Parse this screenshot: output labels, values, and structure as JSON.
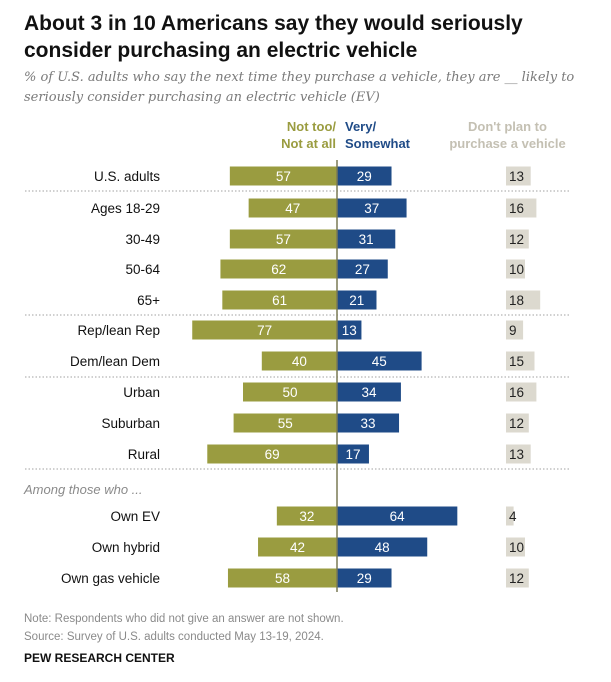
{
  "chart_data": {
    "type": "bar",
    "orientation": "horizontal-diverging",
    "title": "About 3 in 10 Americans say they would seriously consider purchasing an electric vehicle",
    "subtitle": "% of U.S. adults who say the next time they purchase a vehicle, they are __ likely to seriously consider purchasing an electric vehicle (EV)",
    "legend": {
      "not_too": "Not too/ Not at all",
      "not_too_lines": [
        "Not too/",
        "Not at all"
      ],
      "very": "Very/ Somewhat",
      "very_lines": [
        "Very/",
        "Somewhat"
      ],
      "dont_plan": "Don't plan to purchase a vehicle",
      "dont_plan_lines": [
        "Don't plan to",
        "purchase a vehicle"
      ]
    },
    "colors": {
      "not_too": "#9a9c40",
      "very": "#1f4b87",
      "dont_plan": "#dcd9cf"
    },
    "groups": [
      {
        "label": "",
        "rows": [
          0
        ]
      },
      {
        "label": "",
        "rows": [
          1,
          2,
          3,
          4
        ]
      },
      {
        "label": "",
        "rows": [
          5,
          6
        ]
      },
      {
        "label": "",
        "rows": [
          7,
          8,
          9
        ]
      },
      {
        "label": "Among those who ...",
        "rows": [
          10,
          11,
          12
        ]
      }
    ],
    "categories": [
      "U.S. adults",
      "Ages 18-29",
      "30-49",
      "50-64",
      "65+",
      "Rep/lean Rep",
      "Dem/lean Dem",
      "Urban",
      "Suburban",
      "Rural",
      "Own EV",
      "Own hybrid",
      "Own gas vehicle"
    ],
    "series": [
      {
        "name": "Not too/Not at all",
        "values": [
          57,
          47,
          57,
          62,
          61,
          77,
          40,
          50,
          55,
          69,
          32,
          42,
          58
        ]
      },
      {
        "name": "Very/Somewhat",
        "values": [
          29,
          37,
          31,
          27,
          21,
          13,
          45,
          34,
          33,
          17,
          64,
          48,
          29
        ]
      },
      {
        "name": "Don't plan to purchase a vehicle",
        "values": [
          13,
          16,
          12,
          10,
          18,
          9,
          15,
          16,
          12,
          13,
          4,
          10,
          12
        ]
      }
    ],
    "xlabel": "",
    "ylabel": "",
    "grid": false
  },
  "among_label": "Among those who ...",
  "note": "Note: Respondents who did not give an answer are not shown.",
  "source": "Source: Survey of U.S. adults conducted May 13-19, 2024.",
  "brand": "PEW RESEARCH CENTER"
}
